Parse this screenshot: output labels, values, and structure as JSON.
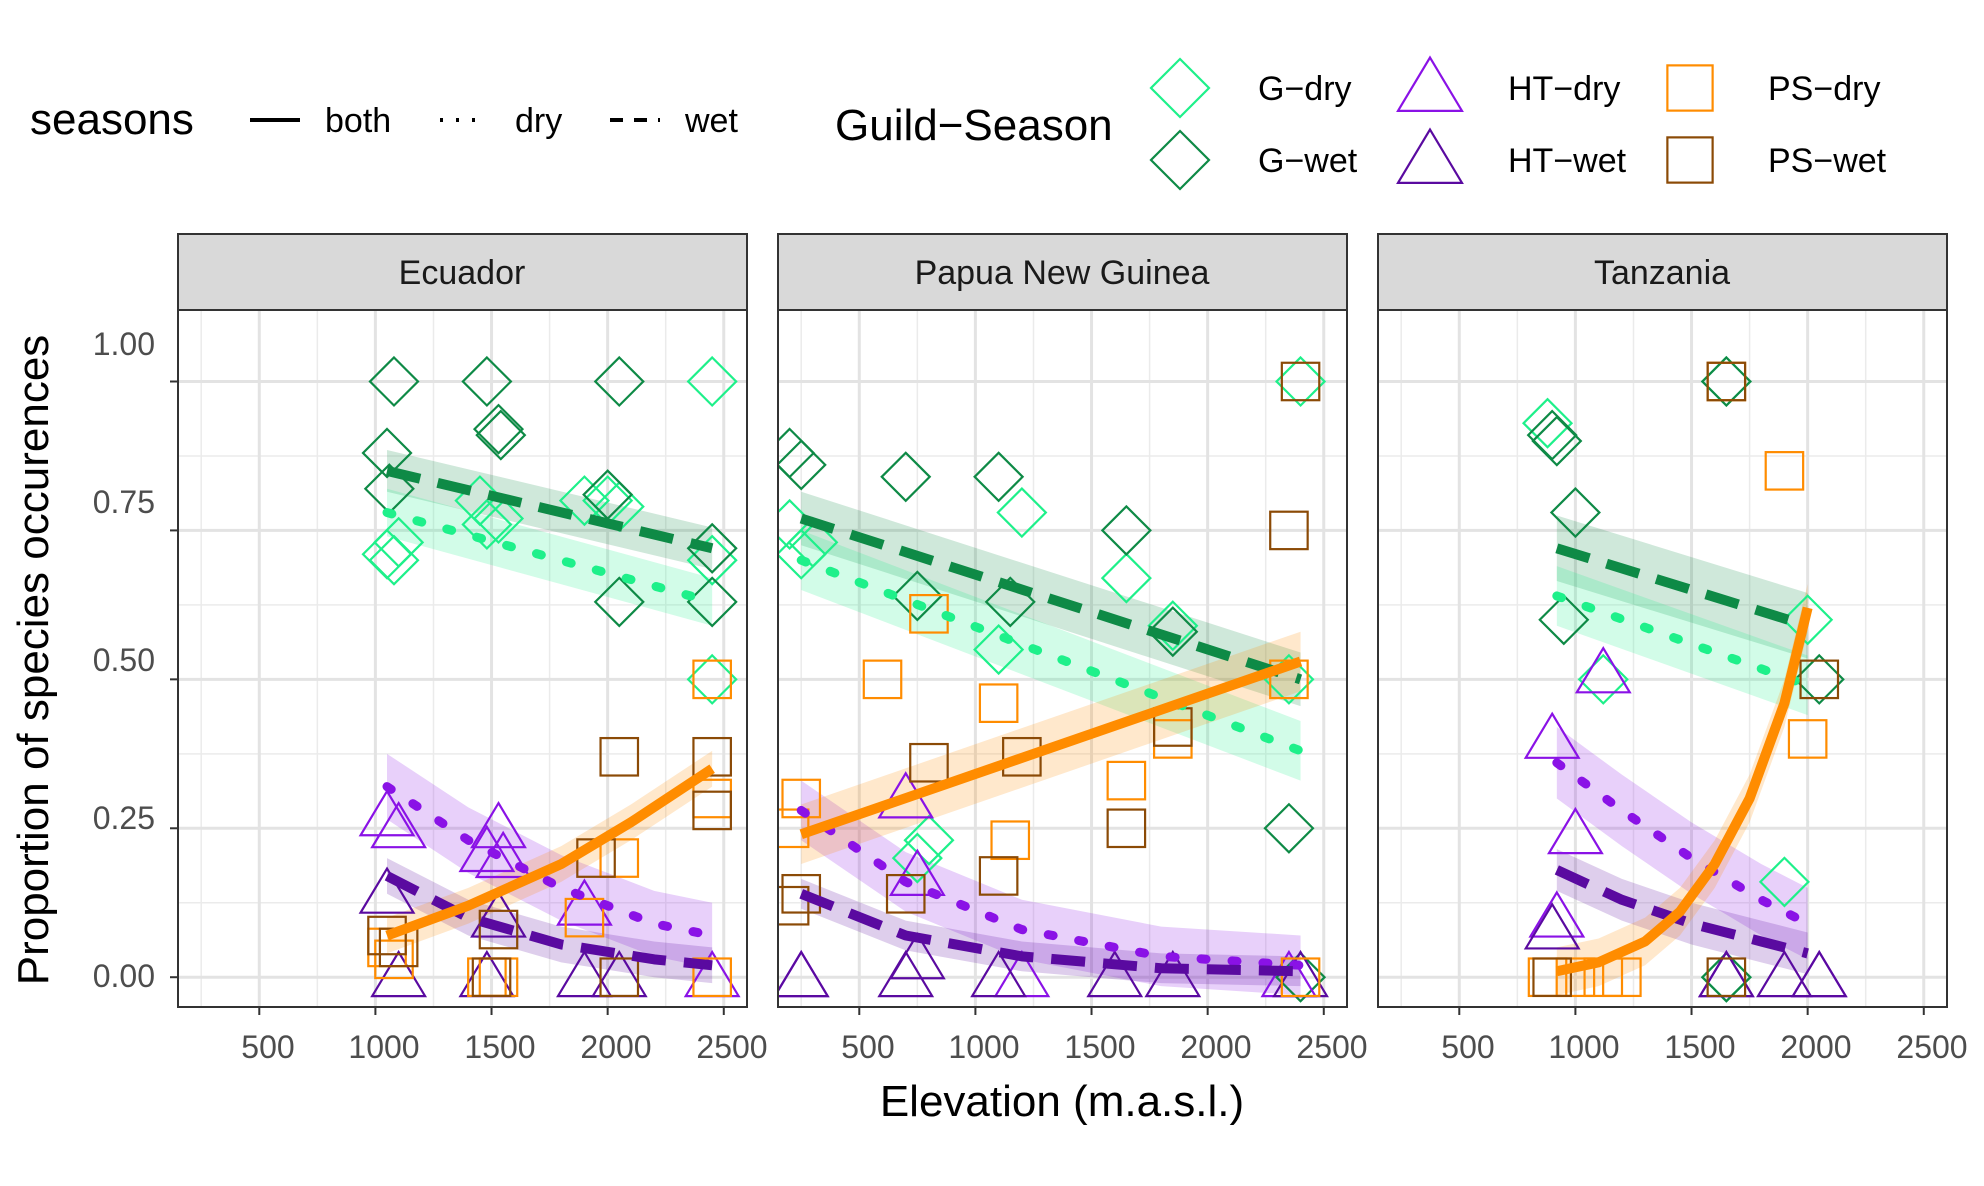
{
  "chart_data": {
    "type": "scatter",
    "xlabel": "Elevation (m.a.s.l.)",
    "ylabel": "Proportion of species occurences",
    "xlim": [
      150,
      2600
    ],
    "ylim": [
      -0.05,
      1.12
    ],
    "x_ticks": [
      500,
      1000,
      1500,
      2000,
      2500
    ],
    "y_ticks": [
      0,
      0.25,
      0.5,
      0.75,
      1
    ],
    "y_tick_labels": [
      "0.00",
      "0.25",
      "0.50",
      "0.75",
      "1.00"
    ],
    "grid": true,
    "legend_position": "top",
    "legend": {
      "seasons_title": "seasons",
      "seasons": [
        {
          "key": "both",
          "label": "both"
        },
        {
          "key": "dry",
          "label": "dry"
        },
        {
          "key": "wet",
          "label": "wet"
        }
      ],
      "guild_title": "Guild−Season",
      "guilds": [
        {
          "key": "G-dry",
          "label": "G−dry",
          "shape": "diamond",
          "color": "#1ef08a"
        },
        {
          "key": "G-wet",
          "label": "G−wet",
          "shape": "diamond",
          "color": "#0e8a46"
        },
        {
          "key": "HT-dry",
          "label": "HT−dry",
          "shape": "triangle",
          "color": "#8a12e6"
        },
        {
          "key": "HT-wet",
          "label": "HT−wet",
          "shape": "triangle",
          "color": "#5a0aa0"
        },
        {
          "key": "PS-dry",
          "label": "PS−dry",
          "shape": "square",
          "color": "#ff8c00"
        },
        {
          "key": "PS-wet",
          "label": "PS−wet",
          "shape": "square",
          "color": "#8b4a06"
        }
      ]
    },
    "panels": [
      {
        "title": "Ecuador",
        "points": {
          "G-dry": [
            [
              1050,
              0.71
            ],
            [
              1080,
              0.7
            ],
            [
              1100,
              0.73
            ],
            [
              1450,
              0.8
            ],
            [
              1480,
              0.76
            ],
            [
              1530,
              0.77
            ],
            [
              1900,
              0.8
            ],
            [
              2000,
              0.8
            ],
            [
              2050,
              0.79
            ],
            [
              2450,
              1.0
            ],
            [
              2450,
              0.5
            ],
            [
              2450,
              0.7
            ]
          ],
          "G-wet": [
            [
              1080,
              1.0
            ],
            [
              1050,
              0.88
            ],
            [
              1060,
              0.82
            ],
            [
              1480,
              1.0
            ],
            [
              1530,
              0.92
            ],
            [
              1540,
              0.91
            ],
            [
              2050,
              1.0
            ],
            [
              2050,
              0.63
            ],
            [
              2450,
              0.72
            ],
            [
              2450,
              0.63
            ],
            [
              2000,
              0.81
            ]
          ],
          "HT-dry": [
            [
              1050,
              0.27
            ],
            [
              1100,
              0.25
            ],
            [
              1480,
              0.21
            ],
            [
              1530,
              0.25
            ],
            [
              1550,
              0.2
            ],
            [
              1900,
              0.12
            ],
            [
              2450,
              0.0
            ]
          ],
          "HT-wet": [
            [
              1050,
              0.14
            ],
            [
              1100,
              0.0
            ],
            [
              1480,
              0.0
            ],
            [
              1530,
              0.1
            ],
            [
              1900,
              0.0
            ],
            [
              2050,
              0.0
            ]
          ],
          "PS-dry": [
            [
              1050,
              0.05
            ],
            [
              1080,
              0.03
            ],
            [
              1480,
              0.0
            ],
            [
              1530,
              0.0
            ],
            [
              1900,
              0.1
            ],
            [
              2050,
              0.2
            ],
            [
              2450,
              0.5
            ],
            [
              2450,
              0.3
            ],
            [
              2450,
              0.0
            ]
          ],
          "PS-wet": [
            [
              1050,
              0.07
            ],
            [
              1100,
              0.05
            ],
            [
              1530,
              0.08
            ],
            [
              1500,
              0.0
            ],
            [
              1950,
              0.2
            ],
            [
              2050,
              0.37
            ],
            [
              2450,
              0.37
            ],
            [
              2450,
              0.28
            ],
            [
              2050,
              0.0
            ]
          ]
        },
        "fits": [
          {
            "key": "G-wet",
            "style": "wet",
            "x": [
              1050,
              2450
            ],
            "y": [
              0.85,
              0.72
            ],
            "band": 0.035
          },
          {
            "key": "G-dry",
            "style": "dry",
            "x": [
              1050,
              2450
            ],
            "y": [
              0.78,
              0.63
            ],
            "band": 0.04
          },
          {
            "key": "HT-dry",
            "style": "dry",
            "x": [
              1050,
              1400,
              1800,
              2200,
              2450
            ],
            "y": [
              0.32,
              0.23,
              0.15,
              0.09,
              0.07
            ],
            "band": 0.055
          },
          {
            "key": "HT-wet",
            "style": "wet",
            "x": [
              1050,
              1400,
              1800,
              2200,
              2450
            ],
            "y": [
              0.17,
              0.1,
              0.055,
              0.03,
              0.02
            ],
            "band": 0.03
          },
          {
            "key": "PS-dry",
            "style": "both",
            "x": [
              1050,
              1400,
              1800,
              2100,
              2450
            ],
            "y": [
              0.07,
              0.12,
              0.19,
              0.26,
              0.35
            ],
            "band": 0.03
          }
        ]
      },
      {
        "title": "Papua New Guinea",
        "points": {
          "G-dry": [
            [
              200,
              0.76
            ],
            [
              250,
              0.71
            ],
            [
              300,
              0.73
            ],
            [
              750,
              0.2
            ],
            [
              800,
              0.23
            ],
            [
              1100,
              0.55
            ],
            [
              1200,
              0.78
            ],
            [
              1650,
              0.67
            ],
            [
              1850,
              0.59
            ],
            [
              2350,
              0.5
            ],
            [
              2400,
              1.0
            ]
          ],
          "G-wet": [
            [
              200,
              0.88
            ],
            [
              250,
              0.86
            ],
            [
              700,
              0.84
            ],
            [
              750,
              0.64
            ],
            [
              1100,
              0.84
            ],
            [
              1150,
              0.63
            ],
            [
              1650,
              0.75
            ],
            [
              1850,
              0.58
            ],
            [
              2350,
              0.25
            ],
            [
              2400,
              0.0
            ]
          ],
          "HT-dry": [
            [
              250,
              0.0
            ],
            [
              700,
              0.3
            ],
            [
              750,
              0.17
            ],
            [
              1200,
              0.0
            ],
            [
              2350,
              0.0
            ]
          ],
          "HT-wet": [
            [
              250,
              0.0
            ],
            [
              700,
              0.0
            ],
            [
              750,
              0.03
            ],
            [
              1100,
              0.0
            ],
            [
              1600,
              0.0
            ],
            [
              1850,
              0.0
            ],
            [
              2400,
              0.0
            ]
          ],
          "PS-dry": [
            [
              250,
              0.3
            ],
            [
              200,
              0.25
            ],
            [
              600,
              0.5
            ],
            [
              800,
              0.61
            ],
            [
              1100,
              0.46
            ],
            [
              1150,
              0.23
            ],
            [
              1650,
              0.33
            ],
            [
              1850,
              0.4
            ],
            [
              2350,
              0.5
            ],
            [
              2400,
              0.0
            ]
          ],
          "PS-wet": [
            [
              250,
              0.14
            ],
            [
              200,
              0.12
            ],
            [
              700,
              0.14
            ],
            [
              800,
              0.36
            ],
            [
              1100,
              0.17
            ],
            [
              1200,
              0.37
            ],
            [
              1650,
              0.25
            ],
            [
              1850,
              0.42
            ],
            [
              2350,
              0.75
            ],
            [
              2400,
              1.0
            ]
          ]
        },
        "fits": [
          {
            "key": "G-wet",
            "style": "wet",
            "x": [
              250,
              2400
            ],
            "y": [
              0.77,
              0.5
            ],
            "band": 0.045
          },
          {
            "key": "G-dry",
            "style": "dry",
            "x": [
              250,
              2400
            ],
            "y": [
              0.7,
              0.38
            ],
            "band": 0.05
          },
          {
            "key": "HT-dry",
            "style": "dry",
            "x": [
              250,
              700,
              1200,
              1800,
              2400
            ],
            "y": [
              0.28,
              0.16,
              0.08,
              0.035,
              0.02
            ],
            "band": 0.05
          },
          {
            "key": "HT-wet",
            "style": "wet",
            "x": [
              250,
              700,
              1200,
              1800,
              2400
            ],
            "y": [
              0.14,
              0.07,
              0.035,
              0.015,
              0.01
            ],
            "band": 0.025
          },
          {
            "key": "PS-dry",
            "style": "both",
            "x": [
              250,
              2400
            ],
            "y": [
              0.24,
              0.53
            ],
            "band": 0.05
          }
        ]
      },
      {
        "title": "Tanzania",
        "points": {
          "G-dry": [
            [
              880,
              0.93
            ],
            [
              1120,
              0.5
            ],
            [
              1900,
              0.16
            ],
            [
              2000,
              0.6
            ],
            [
              1650,
              1.0
            ],
            [
              1650,
              0.0
            ]
          ],
          "G-wet": [
            [
              900,
              0.91
            ],
            [
              920,
              0.9
            ],
            [
              1000,
              0.78
            ],
            [
              950,
              0.6
            ],
            [
              1650,
              1.0
            ],
            [
              2050,
              0.5
            ],
            [
              1650,
              0.0
            ]
          ],
          "HT-dry": [
            [
              900,
              0.4
            ],
            [
              1000,
              0.24
            ],
            [
              1120,
              0.51
            ],
            [
              920,
              0.1
            ],
            [
              1650,
              0.0
            ],
            [
              2050,
              0.0
            ]
          ],
          "HT-wet": [
            [
              900,
              0.08
            ],
            [
              1650,
              0.0
            ],
            [
              1900,
              0.0
            ],
            [
              2050,
              0.0
            ]
          ],
          "PS-dry": [
            [
              880,
              0.0
            ],
            [
              1000,
              0.0
            ],
            [
              1120,
              0.0
            ],
            [
              1200,
              0.0
            ],
            [
              1900,
              0.85
            ],
            [
              2000,
              0.4
            ],
            [
              1650,
              1.0
            ]
          ],
          "PS-wet": [
            [
              900,
              0.0
            ],
            [
              1650,
              1.0
            ],
            [
              1650,
              0.0
            ],
            [
              2050,
              0.5
            ]
          ]
        },
        "fits": [
          {
            "key": "G-wet",
            "style": "wet",
            "x": [
              920,
              2000
            ],
            "y": [
              0.72,
              0.59
            ],
            "band": 0.055
          },
          {
            "key": "G-dry",
            "style": "dry",
            "x": [
              920,
              2000
            ],
            "y": [
              0.64,
              0.49
            ],
            "band": 0.05
          },
          {
            "key": "HT-dry",
            "style": "dry",
            "x": [
              920,
              1200,
              1500,
              1800,
              2000
            ],
            "y": [
              0.36,
              0.28,
              0.2,
              0.13,
              0.09
            ],
            "band": 0.06
          },
          {
            "key": "HT-wet",
            "style": "wet",
            "x": [
              920,
              1200,
              1500,
              1800,
              2000
            ],
            "y": [
              0.18,
              0.13,
              0.09,
              0.06,
              0.04
            ],
            "band": 0.035
          },
          {
            "key": "PS-dry",
            "style": "both",
            "x": [
              920,
              1100,
              1300,
              1450,
              1600,
              1750,
              1900,
              2000
            ],
            "y": [
              0.01,
              0.025,
              0.06,
              0.11,
              0.19,
              0.3,
              0.46,
              0.62
            ],
            "band": 0.04
          }
        ]
      }
    ]
  }
}
